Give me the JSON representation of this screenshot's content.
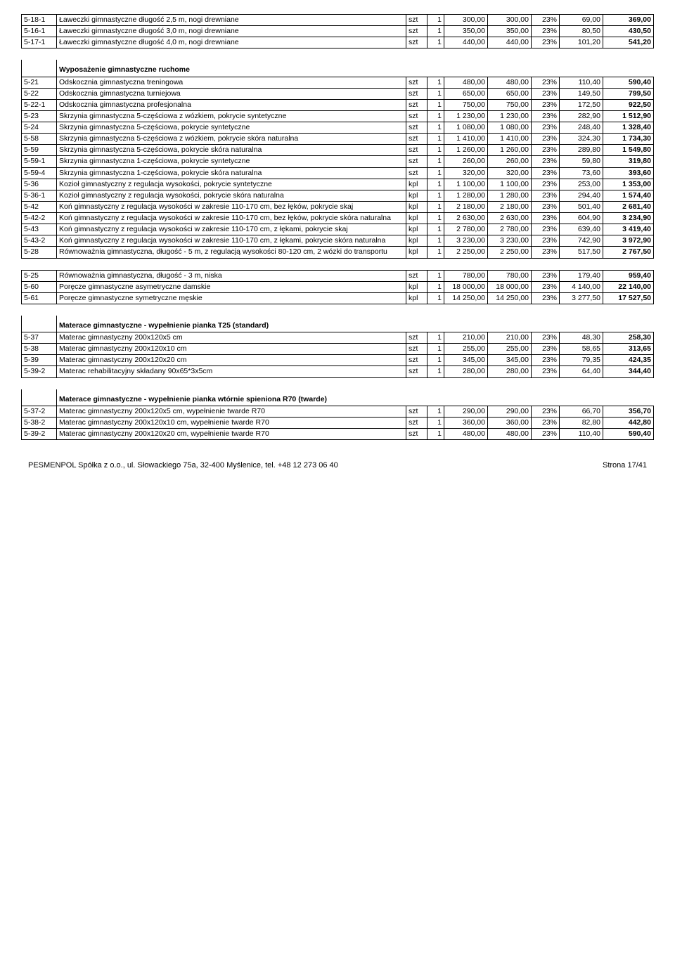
{
  "footer": {
    "left": "PESMENPOL Spółka z o.o., ul. Słowackiego 75a, 32-400 Myślenice, tel. +48 12 273 06 40",
    "right": "Strona 17/41"
  },
  "sections": [
    {
      "rows": [
        {
          "code": "5-18-1",
          "desc": "Ławeczki gimnastyczne długość 2,5 m, nogi drewniane",
          "unit": "szt",
          "qty": "1",
          "p1": "300,00",
          "p2": "300,00",
          "pct": "23%",
          "vat": "69,00",
          "tot": "369,00"
        },
        {
          "code": "5-16-1",
          "desc": "Ławeczki gimnastyczne długość 3,0 m, nogi drewniane",
          "unit": "szt",
          "qty": "1",
          "p1": "350,00",
          "p2": "350,00",
          "pct": "23%",
          "vat": "80,50",
          "tot": "430,50"
        },
        {
          "code": "5-17-1",
          "desc": "Ławeczki gimnastyczne długość 4,0 m, nogi drewniane",
          "unit": "szt",
          "qty": "1",
          "p1": "440,00",
          "p2": "440,00",
          "pct": "23%",
          "vat": "101,20",
          "tot": "541,20"
        }
      ]
    },
    {
      "heading": "Wyposażenie gimnastyczne ruchome",
      "rows": [
        {
          "code": "5-21",
          "desc": "Odskocznia gimnastyczna treningowa",
          "unit": "szt",
          "qty": "1",
          "p1": "480,00",
          "p2": "480,00",
          "pct": "23%",
          "vat": "110,40",
          "tot": "590,40"
        },
        {
          "code": "5-22",
          "desc": "Odskocznia gimnastyczna turniejowa",
          "unit": "szt",
          "qty": "1",
          "p1": "650,00",
          "p2": "650,00",
          "pct": "23%",
          "vat": "149,50",
          "tot": "799,50"
        },
        {
          "code": "5-22-1",
          "desc": "Odskocznia gimnastyczna profesjonalna",
          "unit": "szt",
          "qty": "1",
          "p1": "750,00",
          "p2": "750,00",
          "pct": "23%",
          "vat": "172,50",
          "tot": "922,50"
        },
        {
          "code": "5-23",
          "desc": "Skrzynia gimnastyczna 5-częściowa z wózkiem, pokrycie syntetyczne",
          "unit": "szt",
          "qty": "1",
          "p1": "1 230,00",
          "p2": "1 230,00",
          "pct": "23%",
          "vat": "282,90",
          "tot": "1 512,90"
        },
        {
          "code": "5-24",
          "desc": "Skrzynia gimnastyczna 5-częściowa, pokrycie syntetyczne",
          "unit": "szt",
          "qty": "1",
          "p1": "1 080,00",
          "p2": "1 080,00",
          "pct": "23%",
          "vat": "248,40",
          "tot": "1 328,40"
        },
        {
          "code": "5-58",
          "desc": "Skrzynia gimnastyczna 5-częściowa z wózkiem, pokrycie skóra naturalna",
          "unit": "szt",
          "qty": "1",
          "p1": "1 410,00",
          "p2": "1 410,00",
          "pct": "23%",
          "vat": "324,30",
          "tot": "1 734,30"
        },
        {
          "code": "5-59",
          "desc": "Skrzynia gimnastyczna 5-częściowa, pokrycie skóra naturalna",
          "unit": "szt",
          "qty": "1",
          "p1": "1 260,00",
          "p2": "1 260,00",
          "pct": "23%",
          "vat": "289,80",
          "tot": "1 549,80"
        },
        {
          "code": "5-59-1",
          "desc": "Skrzynia gimnastyczna 1-częściowa, pokrycie syntetyczne",
          "unit": "szt",
          "qty": "1",
          "p1": "260,00",
          "p2": "260,00",
          "pct": "23%",
          "vat": "59,80",
          "tot": "319,80"
        },
        {
          "code": "5-59-4",
          "desc": "Skrzynia gimnastyczna 1-częściowa, pokrycie skóra naturalna",
          "unit": "szt",
          "qty": "1",
          "p1": "320,00",
          "p2": "320,00",
          "pct": "23%",
          "vat": "73,60",
          "tot": "393,60"
        },
        {
          "code": "5-36",
          "desc": "Kozioł gimnastyczny z regulacja wysokości, pokrycie syntetyczne",
          "unit": "kpl",
          "qty": "1",
          "p1": "1 100,00",
          "p2": "1 100,00",
          "pct": "23%",
          "vat": "253,00",
          "tot": "1 353,00"
        },
        {
          "code": "5-36-1",
          "desc": "Kozioł gimnastyczny z regulacja wysokości, pokrycie skóra naturalna",
          "unit": "kpl",
          "qty": "1",
          "p1": "1 280,00",
          "p2": "1 280,00",
          "pct": "23%",
          "vat": "294,40",
          "tot": "1 574,40"
        },
        {
          "code": "5-42",
          "desc": "Koń gimnastyczny z regulacja wysokości w zakresie 110-170 cm, bez łęków, pokrycie skaj",
          "unit": "kpl",
          "qty": "1",
          "p1": "2 180,00",
          "p2": "2 180,00",
          "pct": "23%",
          "vat": "501,40",
          "tot": "2 681,40"
        },
        {
          "code": "5-42-2",
          "desc": "Koń gimnastyczny z regulacja wysokości w zakresie 110-170 cm, bez łęków, pokrycie skóra naturalna",
          "unit": "kpl",
          "qty": "1",
          "p1": "2 630,00",
          "p2": "2 630,00",
          "pct": "23%",
          "vat": "604,90",
          "tot": "3 234,90"
        },
        {
          "code": "5-43",
          "desc": "Koń gimnastyczny z regulacja wysokości w zakresie 110-170 cm, z łękami, pokrycie skaj",
          "unit": "kpl",
          "qty": "1",
          "p1": "2 780,00",
          "p2": "2 780,00",
          "pct": "23%",
          "vat": "639,40",
          "tot": "3 419,40"
        },
        {
          "code": "5-43-2",
          "desc": "Koń gimnastyczny z regulacja wysokości w zakresie 110-170 cm, z łękami, pokrycie skóra naturalna",
          "unit": "kpl",
          "qty": "1",
          "p1": "3 230,00",
          "p2": "3 230,00",
          "pct": "23%",
          "vat": "742,90",
          "tot": "3 972,90"
        },
        {
          "code": "5-28",
          "desc": "Równoważnia gimnastyczna, długość - 5 m, z regulacją wysokości 80-120 cm, 2 wózki do transportu",
          "unit": "kpl",
          "qty": "1",
          "p1": "2 250,00",
          "p2": "2 250,00",
          "pct": "23%",
          "vat": "517,50",
          "tot": "2 767,50"
        }
      ]
    },
    {
      "rows": [
        {
          "code": "5-25",
          "desc": "Równoważnia gimnastyczna, długość - 3 m, niska",
          "unit": "szt",
          "qty": "1",
          "p1": "780,00",
          "p2": "780,00",
          "pct": "23%",
          "vat": "179,40",
          "tot": "959,40"
        },
        {
          "code": "5-60",
          "desc": "Poręcze gimnastyczne asymetryczne damskie",
          "unit": "kpl",
          "qty": "1",
          "p1": "18 000,00",
          "p2": "18 000,00",
          "pct": "23%",
          "vat": "4 140,00",
          "tot": "22 140,00"
        },
        {
          "code": "5-61",
          "desc": "Poręcze gimnastyczne symetryczne męskie",
          "unit": "kpl",
          "qty": "1",
          "p1": "14 250,00",
          "p2": "14 250,00",
          "pct": "23%",
          "vat": "3 277,50",
          "tot": "17 527,50"
        }
      ]
    },
    {
      "heading": "Materace gimnastyczne - wypełnienie pianka T25 (standard)",
      "rows": [
        {
          "code": "5-37",
          "desc": "Materac gimnastyczny 200x120x5 cm",
          "unit": "szt",
          "qty": "1",
          "p1": "210,00",
          "p2": "210,00",
          "pct": "23%",
          "vat": "48,30",
          "tot": "258,30"
        },
        {
          "code": "5-38",
          "desc": "Materac gimnastyczny 200x120x10 cm",
          "unit": "szt",
          "qty": "1",
          "p1": "255,00",
          "p2": "255,00",
          "pct": "23%",
          "vat": "58,65",
          "tot": "313,65"
        },
        {
          "code": "5-39",
          "desc": "Materac gimnastyczny 200x120x20 cm",
          "unit": "szt",
          "qty": "1",
          "p1": "345,00",
          "p2": "345,00",
          "pct": "23%",
          "vat": "79,35",
          "tot": "424,35"
        },
        {
          "code": "5-39-2",
          "desc": "Materac rehabilitacyjny składany 90x65*3x5cm",
          "unit": "szt",
          "qty": "1",
          "p1": "280,00",
          "p2": "280,00",
          "pct": "23%",
          "vat": "64,40",
          "tot": "344,40"
        }
      ]
    },
    {
      "heading": "Materace gimnastyczne - wypełnienie pianka wtórnie spieniona R70 (twarde)",
      "rows": [
        {
          "code": "5-37-2",
          "desc": "Materac gimnastyczny 200x120x5 cm, wypełnienie twarde R70",
          "unit": "szt",
          "qty": "1",
          "p1": "290,00",
          "p2": "290,00",
          "pct": "23%",
          "vat": "66,70",
          "tot": "356,70"
        },
        {
          "code": "5-38-2",
          "desc": "Materac gimnastyczny 200x120x10 cm, wypełnienie twarde R70",
          "unit": "szt",
          "qty": "1",
          "p1": "360,00",
          "p2": "360,00",
          "pct": "23%",
          "vat": "82,80",
          "tot": "442,80"
        },
        {
          "code": "5-39-2",
          "desc": "Materac gimnastyczny 200x120x20 cm, wypełnienie twarde R70",
          "unit": "szt",
          "qty": "1",
          "p1": "480,00",
          "p2": "480,00",
          "pct": "23%",
          "vat": "110,40",
          "tot": "590,40"
        }
      ]
    }
  ]
}
